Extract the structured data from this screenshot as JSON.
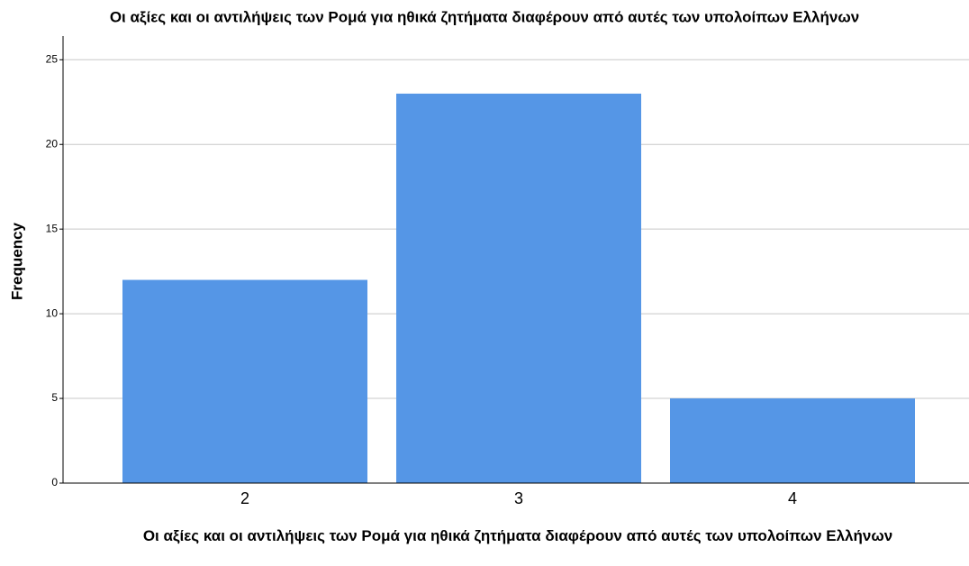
{
  "chart_data": {
    "type": "bar",
    "title": "Οι αξίες και οι αντιλήψεις των Ρομά για ηθικά ζητήματα διαφέρουν από αυτές των υπολοίπων Ελλήνων",
    "x_label": "Οι αξίες και οι αντιλήψεις των Ρομά για ηθικά ζητήματα διαφέρουν από αυτές των υπολοίπων Ελλήνων",
    "y_label": "Frequency",
    "categories": [
      "2",
      "3",
      "4"
    ],
    "values": [
      12,
      23,
      5
    ],
    "color": "#5596e6",
    "ylim": [
      0,
      26.4
    ],
    "yticks": [
      0,
      5,
      10,
      15,
      20,
      25
    ],
    "grid": true
  }
}
